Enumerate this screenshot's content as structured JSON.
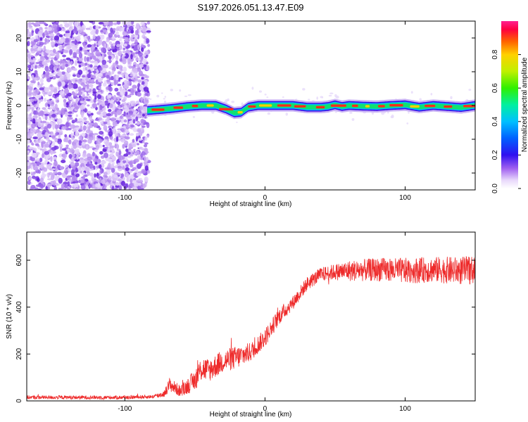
{
  "title": "S197.2026.051.13.47.E09",
  "chart_data": [
    {
      "type": "heatmap",
      "name": "spectrogram",
      "xlabel": "Height of straight line (km)",
      "ylabel": "Frequency (Hz)",
      "xlim": [
        -170,
        150
      ],
      "ylim": [
        -25,
        25
      ],
      "xticks": [
        -100,
        0,
        100
      ],
      "xtick_labels": [
        "-100",
        "0",
        "100"
      ],
      "yticks": [
        -20,
        -10,
        0,
        10,
        20
      ],
      "ytick_labels": [
        "-20",
        "-10",
        "0",
        "10",
        "20"
      ],
      "noise_region_x": [
        -170,
        -83
      ],
      "ridge": {
        "description": "line-of-sight signal ridge near 0 Hz",
        "x": [
          -84,
          -75,
          -65,
          -55,
          -45,
          -35,
          -28,
          -22,
          -17,
          -12,
          -5,
          0,
          10,
          20,
          30,
          40,
          45,
          50,
          55,
          60,
          70,
          80,
          90,
          100,
          110,
          120,
          130,
          140,
          150
        ],
        "freq": [
          -1.5,
          -1.2,
          -0.8,
          -0.3,
          0.0,
          0.0,
          -1.0,
          -2.2,
          -2.0,
          -0.5,
          0.0,
          0.0,
          0.0,
          0.0,
          -0.5,
          -0.5,
          -0.3,
          0.2,
          -0.3,
          0.0,
          -0.2,
          -0.3,
          0.0,
          0.2,
          -0.5,
          0.0,
          -0.3,
          -0.6,
          0.0
        ]
      },
      "colorbar": {
        "label": "Normalized spectral amplitude",
        "range": [
          0,
          1
        ],
        "ticks": [
          0.0,
          0.2,
          0.4,
          0.6,
          0.8
        ],
        "tick_labels": [
          "0.0",
          "0.2",
          "0.4",
          "0.6",
          "0.8"
        ]
      }
    },
    {
      "type": "line",
      "name": "snr",
      "xlabel": "Height of straight line (km)",
      "ylabel": "SNR (10 * v/v)",
      "xlim": [
        -170,
        150
      ],
      "ylim": [
        0,
        720
      ],
      "xticks": [
        -100,
        0,
        100
      ],
      "xtick_labels": [
        "-100",
        "0",
        "100"
      ],
      "yticks": [
        0,
        200,
        400,
        600
      ],
      "ytick_labels": [
        "0",
        "200",
        "400",
        "600"
      ],
      "line_color": "#ee2b2b",
      "series_envelope": {
        "x": [
          -170,
          -100,
          -80,
          -72,
          -68,
          -60,
          -50,
          -45,
          -40,
          -30,
          -20,
          -10,
          0,
          10,
          20,
          30,
          40,
          50,
          60,
          80,
          100,
          120,
          140,
          150
        ],
        "mean": [
          15,
          15,
          18,
          30,
          70,
          40,
          90,
          140,
          130,
          170,
          185,
          210,
          270,
          360,
          420,
          500,
          540,
          550,
          555,
          560,
          555,
          560,
          555,
          560
        ],
        "noise": [
          8,
          8,
          8,
          14,
          30,
          25,
          45,
          55,
          50,
          50,
          50,
          40,
          40,
          35,
          30,
          30,
          30,
          35,
          45,
          50,
          55,
          55,
          60,
          60
        ]
      }
    }
  ]
}
